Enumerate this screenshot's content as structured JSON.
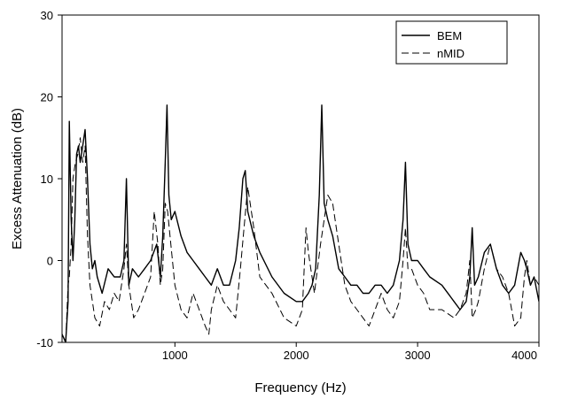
{
  "chart_data": {
    "type": "line",
    "title": "",
    "xlabel": "Frequency (Hz)",
    "ylabel": "Excess Attenuation (dB)",
    "xlim": [
      70,
      4000
    ],
    "ylim": [
      -10,
      30
    ],
    "x_ticks": [
      1000,
      2000,
      3000,
      4000
    ],
    "y_ticks": [
      -10,
      0,
      10,
      20,
      30
    ],
    "x_tick_labels": [
      "1000",
      "2000",
      "3000",
      "4000"
    ],
    "y_tick_labels": [
      "-10",
      "0",
      "10",
      "20",
      "30"
    ],
    "grid": false,
    "legend_position": "top-right",
    "series": [
      {
        "name": "BEM",
        "style": "solid",
        "color": "#000000",
        "x": [
          70,
          100,
          120,
          130,
          145,
          160,
          175,
          190,
          205,
          220,
          240,
          260,
          280,
          300,
          320,
          340,
          360,
          400,
          450,
          500,
          550,
          580,
          600,
          620,
          650,
          700,
          750,
          800,
          850,
          880,
          900,
          920,
          935,
          950,
          970,
          1000,
          1050,
          1100,
          1150,
          1200,
          1250,
          1300,
          1350,
          1400,
          1450,
          1500,
          1530,
          1560,
          1580,
          1600,
          1650,
          1700,
          1800,
          1900,
          2000,
          2050,
          2100,
          2130,
          2160,
          2190,
          2210,
          2230,
          2260,
          2300,
          2350,
          2400,
          2450,
          2500,
          2550,
          2600,
          2650,
          2700,
          2750,
          2800,
          2850,
          2880,
          2900,
          2920,
          2950,
          3000,
          3050,
          3100,
          3200,
          3300,
          3350,
          3400,
          3430,
          3450,
          3470,
          3500,
          3550,
          3600,
          3650,
          3700,
          3750,
          3800,
          3850,
          3880,
          3900,
          3930,
          3960,
          4000
        ],
        "y": [
          -9,
          -10,
          -5,
          17,
          5,
          0,
          5,
          13,
          14,
          12,
          14,
          16,
          10,
          2,
          -1,
          0,
          -2,
          -4,
          -1,
          -2,
          -2,
          0,
          10,
          -3,
          -1,
          -2,
          -1,
          0,
          2,
          -2,
          3,
          12,
          19,
          8,
          5,
          6,
          3,
          1,
          0,
          -1,
          -2,
          -3,
          -1,
          -3,
          -3,
          0,
          4,
          10,
          11,
          6,
          3,
          1,
          -2,
          -4,
          -5,
          -5,
          -4,
          -3,
          -1,
          8,
          19,
          7,
          5,
          3,
          -1,
          -2,
          -3,
          -3,
          -4,
          -4,
          -3,
          -3,
          -4,
          -3,
          0,
          5,
          12,
          2,
          0,
          0,
          -1,
          -2,
          -3,
          -5,
          -6,
          -5,
          -2,
          4,
          -3,
          -2,
          1,
          2,
          -1,
          -3,
          -4,
          -3,
          1,
          0,
          -1,
          -3,
          -2,
          -5
        ]
      },
      {
        "name": "nMID",
        "style": "dashed",
        "color": "#000000",
        "x": [
          70,
          100,
          120,
          130,
          145,
          160,
          180,
          200,
          220,
          240,
          260,
          280,
          300,
          340,
          380,
          420,
          460,
          500,
          540,
          580,
          600,
          620,
          660,
          700,
          750,
          800,
          830,
          860,
          880,
          900,
          920,
          940,
          960,
          1000,
          1050,
          1100,
          1150,
          1200,
          1250,
          1280,
          1300,
          1350,
          1400,
          1450,
          1500,
          1540,
          1570,
          1600,
          1650,
          1700,
          1800,
          1900,
          2000,
          2050,
          2080,
          2100,
          2150,
          2200,
          2230,
          2260,
          2300,
          2350,
          2400,
          2450,
          2500,
          2550,
          2600,
          2650,
          2700,
          2750,
          2800,
          2850,
          2880,
          2900,
          2920,
          2950,
          3000,
          3050,
          3100,
          3200,
          3300,
          3350,
          3400,
          3430,
          3450,
          3480,
          3500,
          3550,
          3600,
          3650,
          3700,
          3750,
          3800,
          3850,
          3880,
          3900,
          3930,
          3960,
          4000
        ],
        "y": [
          -9,
          -10,
          -3,
          -2,
          2,
          10,
          12,
          13,
          15,
          12,
          14,
          3,
          -3,
          -7,
          -8,
          -5,
          -6,
          -4,
          -5,
          -1,
          2,
          -3,
          -7,
          -6,
          -4,
          -2,
          6,
          2,
          -3,
          -1,
          7,
          6,
          3,
          -3,
          -6,
          -7,
          -4,
          -6,
          -8,
          -9,
          -6,
          -3,
          -5,
          -6,
          -7,
          -1,
          4,
          9,
          4,
          -2,
          -4,
          -7,
          -8,
          -6,
          4,
          1,
          -4,
          2,
          5,
          8,
          7,
          2,
          -3,
          -5,
          -6,
          -7,
          -8,
          -6,
          -4,
          -6,
          -7,
          -5,
          0,
          4,
          -1,
          -1,
          -3,
          -4,
          -6,
          -6,
          -7,
          -6,
          -4,
          0,
          -7,
          -6,
          -5,
          -1,
          2,
          -1,
          -2,
          -4,
          -8,
          -7,
          -2,
          0,
          -3,
          -2,
          -3
        ]
      }
    ]
  }
}
